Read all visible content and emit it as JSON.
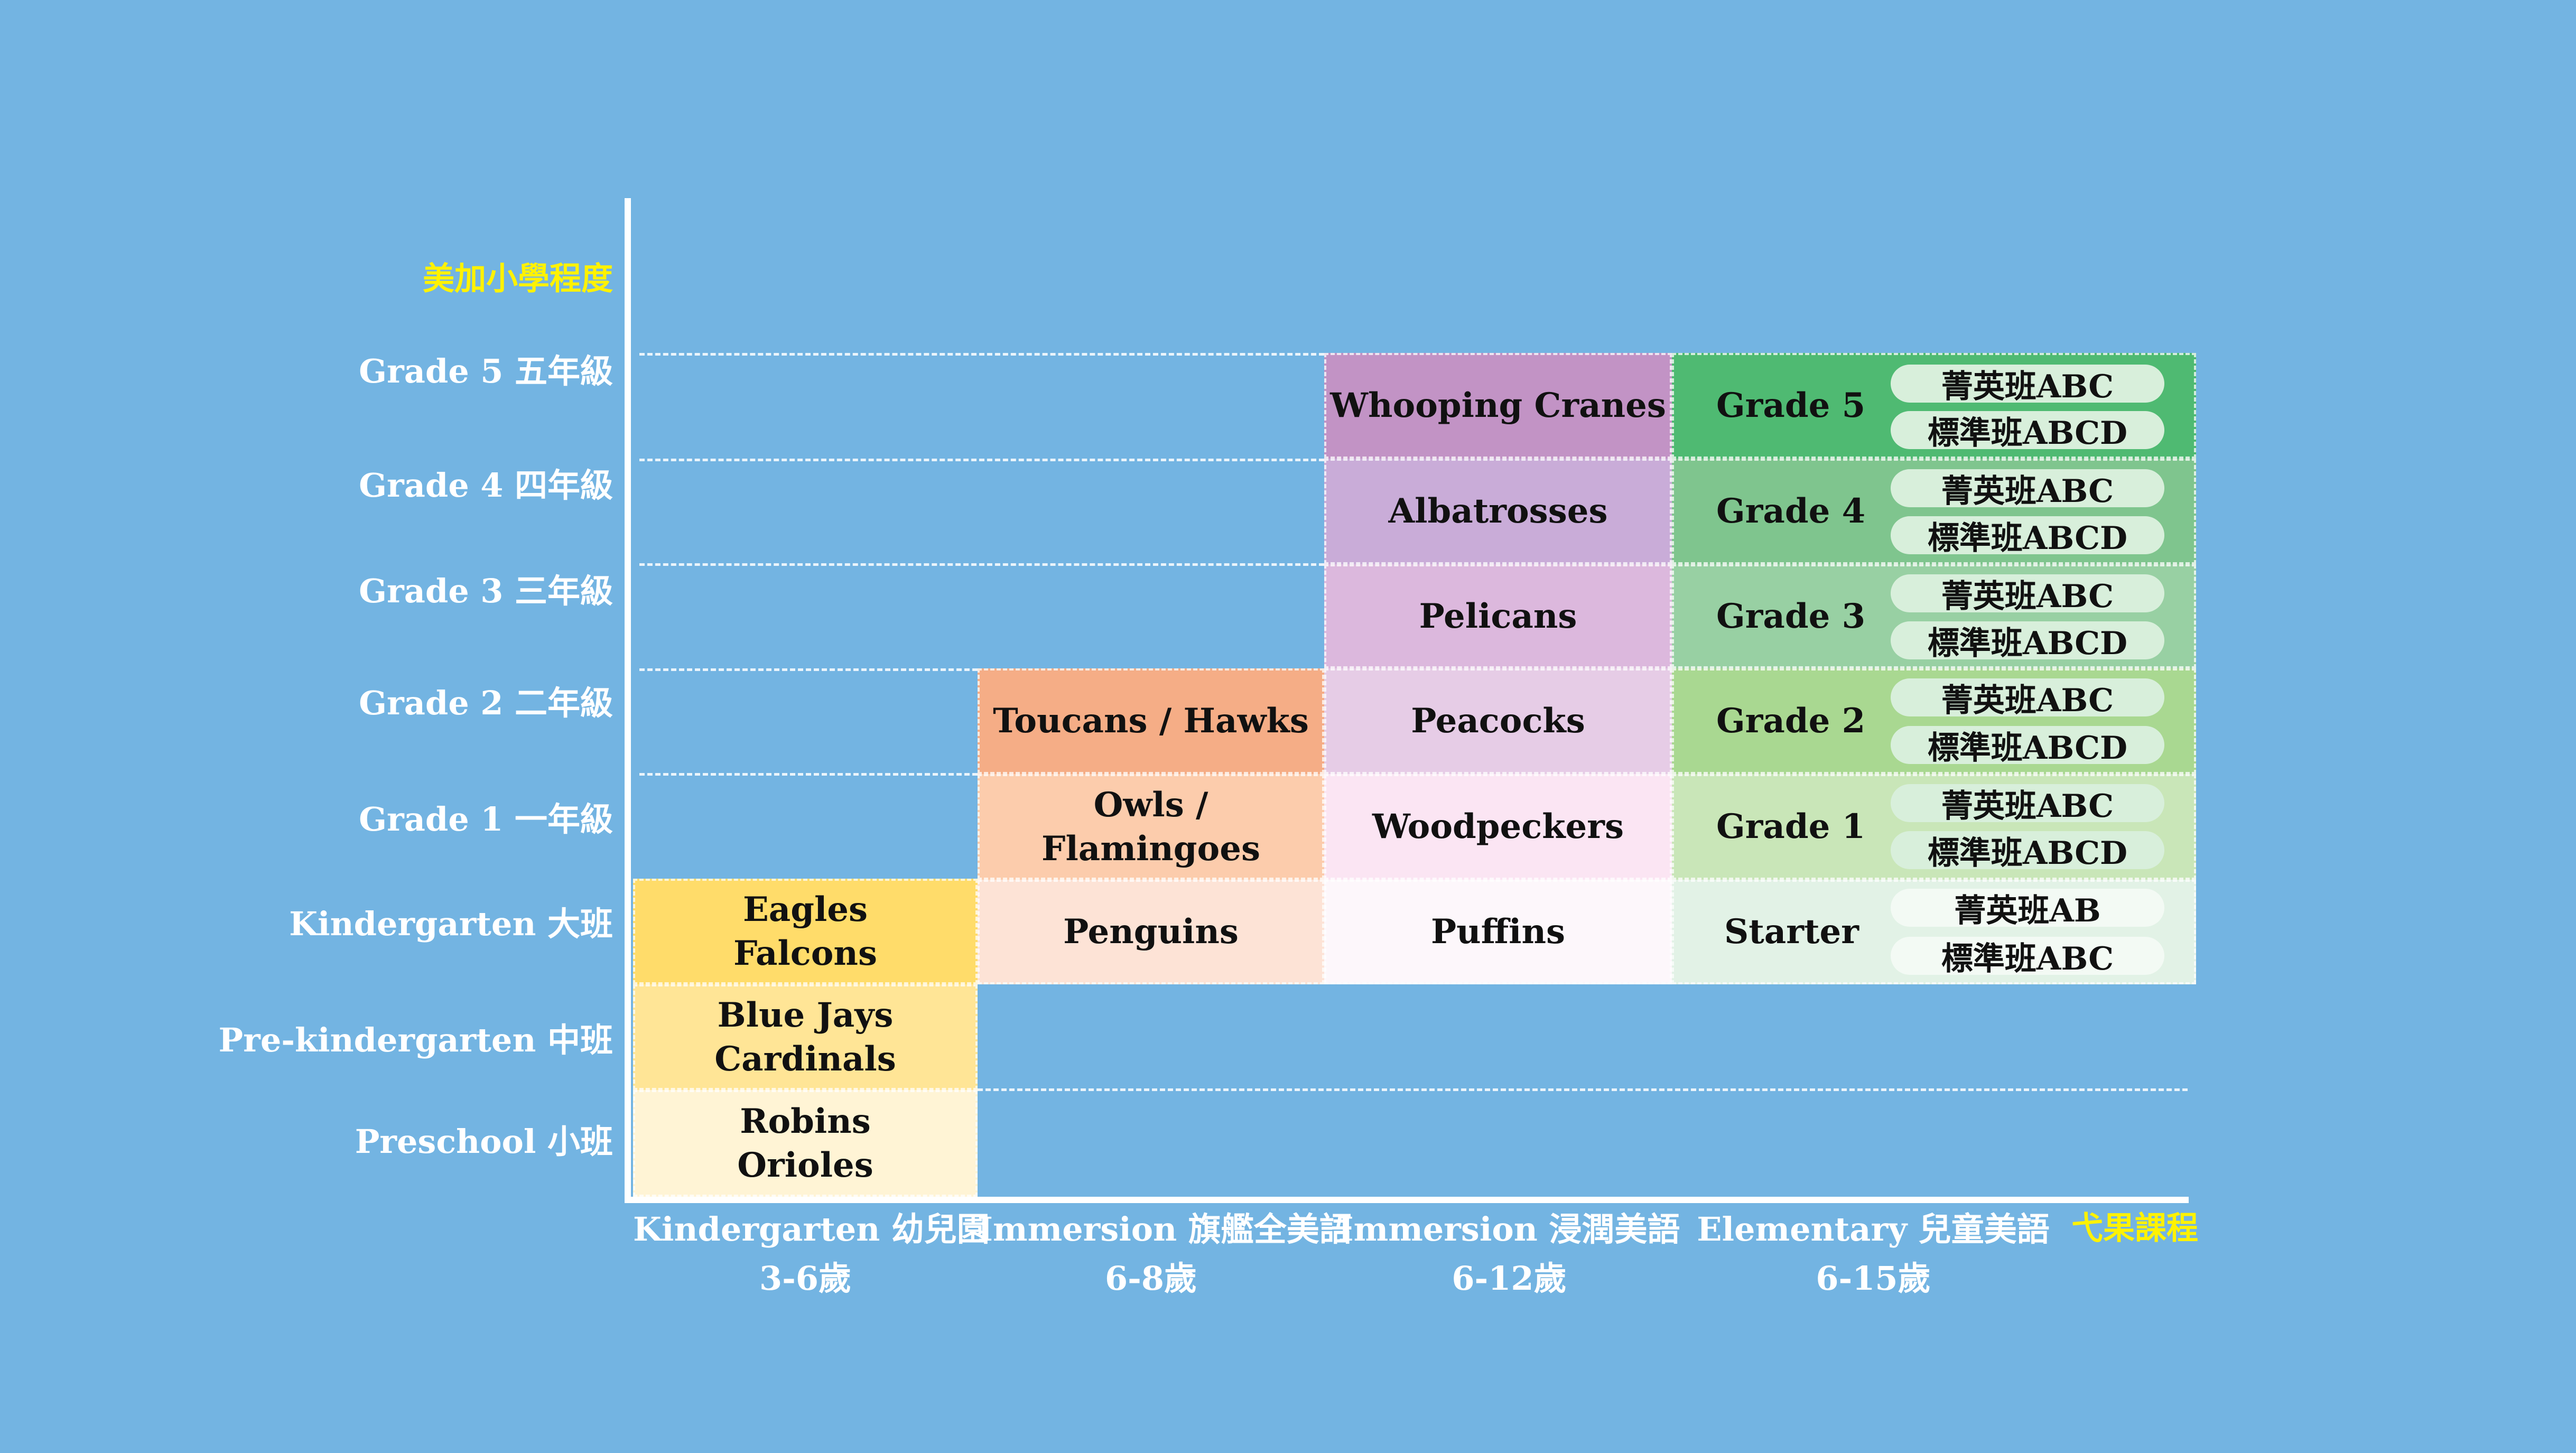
{
  "y_axis": {
    "title": "美加小學程度",
    "levels": [
      "Grade 5 五年級",
      "Grade 4 四年級",
      "Grade 3 三年級",
      "Grade 2 二年級",
      "Grade 1 一年級",
      "Kindergarten 大班",
      "Pre-kindergarten 中班",
      "Preschool 小班"
    ]
  },
  "x_axis": {
    "title": "弋果課程",
    "programs": [
      {
        "name": "Kindergarten 幼兒園",
        "ages": "3-6歲"
      },
      {
        "name": "Immersion 旗艦全美語",
        "ages": "6-8歲"
      },
      {
        "name": "Immersion 浸潤美語",
        "ages": "6-12歲"
      },
      {
        "name": "Elementary 兒童美語",
        "ages": "6-15歲"
      }
    ]
  },
  "kindergarten": [
    "Eagles",
    "Falcons",
    "Blue Jays",
    "Cardinals",
    "Robins",
    "Orioles"
  ],
  "immersion_flagship": [
    "Toucans / Hawks",
    "Owls / Flamingoes",
    "Penguins"
  ],
  "immersion": [
    "Whooping Cranes",
    "Albatrosses",
    "Pelicans",
    "Peacocks",
    "Woodpeckers",
    "Puffins"
  ],
  "elementary": [
    {
      "grade": "Grade 5",
      "tracks": [
        "菁英班ABC",
        "標準班ABCD"
      ]
    },
    {
      "grade": "Grade 4",
      "tracks": [
        "菁英班ABC",
        "標準班ABCD"
      ]
    },
    {
      "grade": "Grade 3",
      "tracks": [
        "菁英班ABC",
        "標準班ABCD"
      ]
    },
    {
      "grade": "Grade 2",
      "tracks": [
        "菁英班ABC",
        "標準班ABCD"
      ]
    },
    {
      "grade": "Grade 1",
      "tracks": [
        "菁英班ABC",
        "標準班ABCD"
      ]
    },
    {
      "grade": "Starter",
      "tracks": [
        "菁英班AB",
        "標準班ABC"
      ]
    }
  ],
  "colors": {
    "background": "#73b4e2",
    "kindergarten": [
      "#ffdc6a",
      "#ffe596",
      "#fff4d5"
    ],
    "immersion_flagship": [
      "#f5ad86",
      "#fcccac",
      "#fde3d6"
    ],
    "immersion": [
      "#c293c5",
      "#c9acd8",
      "#dcb8dd",
      "#e6cce6",
      "#fbe5f3",
      "#fdf7fb"
    ],
    "elementary": [
      "#4fba72",
      "#7fc58e",
      "#98d0a3",
      "#a9d891",
      "#c9e6b8",
      "#e2f2e6"
    ],
    "highlight_text": "#fff200"
  }
}
